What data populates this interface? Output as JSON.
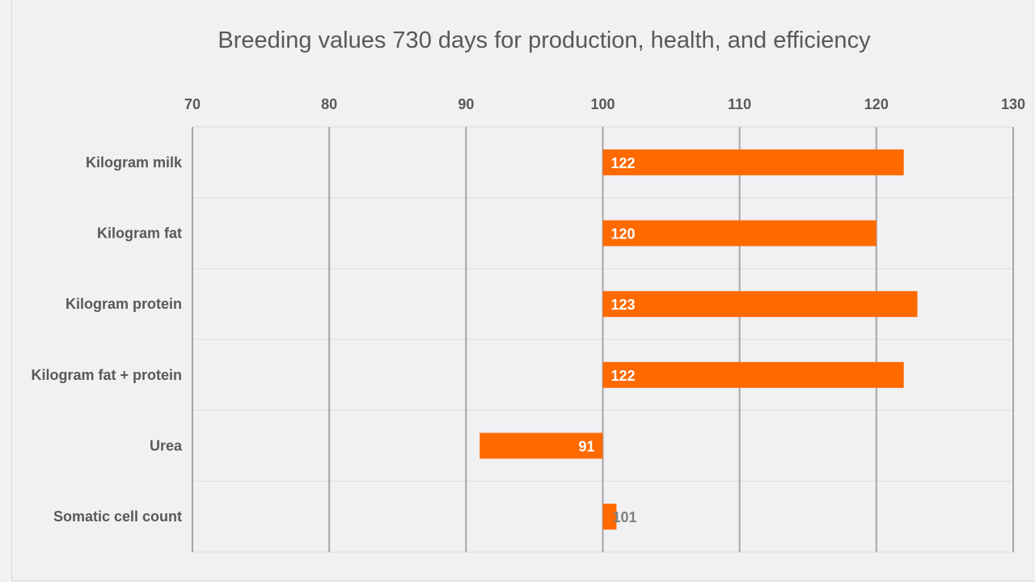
{
  "chart_data": {
    "type": "bar",
    "orientation": "horizontal",
    "title": "Breeding values 730 days for production, health, and efficiency",
    "categories": [
      "Kilogram milk",
      "Kilogram fat",
      "Kilogram protein",
      "Kilogram fat + protein",
      "Urea",
      "Somatic cell count"
    ],
    "values": [
      122,
      120,
      123,
      122,
      91,
      101
    ],
    "base_value": 100,
    "xlim": [
      70,
      130
    ],
    "x_ticks": [
      70,
      80,
      90,
      100,
      110,
      120,
      130
    ],
    "x_axis_position": "top",
    "gridlines": true,
    "legend": "none",
    "bar_color": "#ff6a00",
    "label_color_inside": "#ffffff",
    "label_color_outside": "#7f7f7f"
  }
}
